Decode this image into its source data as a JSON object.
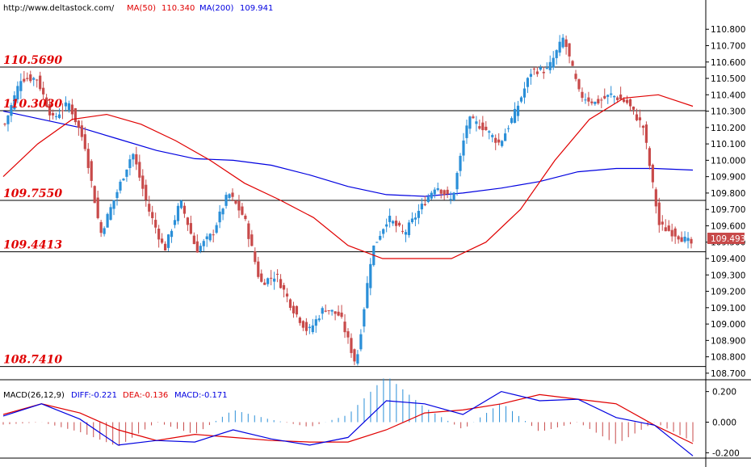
{
  "header": {
    "site": "http://www.deltastock.com/",
    "ma50": {
      "label": "MA(50)",
      "value": "110.340",
      "color": "#e00000"
    },
    "ma200": {
      "label": "MA(200)",
      "value": "109.941",
      "color": "#0000e0"
    }
  },
  "macd_header": {
    "title": "MACD(26,12,9)",
    "diff": "DIFF:-0.221",
    "dea": "DEA:-0.136",
    "macd": "MACD:-0.171"
  },
  "colors": {
    "up": "#2a8fd8",
    "down": "#c84a4a",
    "ma50": "#e00000",
    "ma200": "#0000e0",
    "price_tag": "#c84a4a",
    "level_text": "#e00000"
  },
  "price_tag": "109.493",
  "chart_data": [
    {
      "type": "candlestick",
      "title": "",
      "ylim": [
        108.66,
        110.88
      ],
      "y_ticks": [
        "110.800",
        "110.700",
        "110.600",
        "110.500",
        "110.400",
        "110.300",
        "110.200",
        "110.100",
        "110.000",
        "109.900",
        "109.800",
        "109.700",
        "109.600",
        "109.500",
        "109.400",
        "109.300",
        "109.200",
        "109.100",
        "109.000",
        "108.900",
        "108.800",
        "108.700"
      ],
      "levels": [
        "110.5690",
        "110.3030",
        "109.7550",
        "109.4413",
        "108.7410"
      ],
      "key_closes": [
        110.22,
        110.5,
        110.5,
        110.25,
        110.35,
        110.1,
        109.55,
        109.8,
        110.05,
        109.7,
        109.45,
        109.75,
        109.45,
        109.55,
        109.8,
        109.65,
        109.25,
        109.3,
        109.1,
        108.95,
        109.1,
        109.05,
        108.75,
        109.45,
        109.65,
        109.55,
        109.7,
        109.85,
        109.75,
        110.25,
        110.2,
        110.1,
        110.3,
        110.55,
        110.55,
        110.75,
        110.4,
        110.35,
        110.4,
        110.35,
        110.2,
        109.6,
        109.55,
        109.49
      ],
      "ma50_points": [
        109.9,
        110.1,
        110.25,
        110.28,
        110.22,
        110.12,
        110.0,
        109.86,
        109.76,
        109.65,
        109.48,
        109.4,
        109.4,
        109.4,
        109.5,
        109.7,
        110.0,
        110.25,
        110.38,
        110.4,
        110.33
      ],
      "ma200_points": [
        110.3,
        110.25,
        110.2,
        110.13,
        110.06,
        110.01,
        110.0,
        109.97,
        109.91,
        109.84,
        109.79,
        109.78,
        109.8,
        109.83,
        109.87,
        109.93,
        109.95,
        109.95,
        109.94
      ]
    },
    {
      "type": "macd",
      "ylim": [
        -0.235,
        0.235
      ],
      "y_ticks": [
        "0.200",
        "0.000",
        "-0.200"
      ],
      "diff_points": [
        0.04,
        0.12,
        0.02,
        -0.15,
        -0.12,
        -0.13,
        -0.05,
        -0.11,
        -0.15,
        -0.1,
        0.14,
        0.12,
        0.05,
        0.2,
        0.14,
        0.15,
        0.03,
        -0.02,
        -0.22
      ],
      "dea_points": [
        0.05,
        0.12,
        0.06,
        -0.05,
        -0.12,
        -0.08,
        -0.1,
        -0.12,
        -0.13,
        -0.13,
        -0.05,
        0.06,
        0.08,
        0.12,
        0.18,
        0.15,
        0.12,
        -0.02,
        -0.14
      ]
    }
  ]
}
